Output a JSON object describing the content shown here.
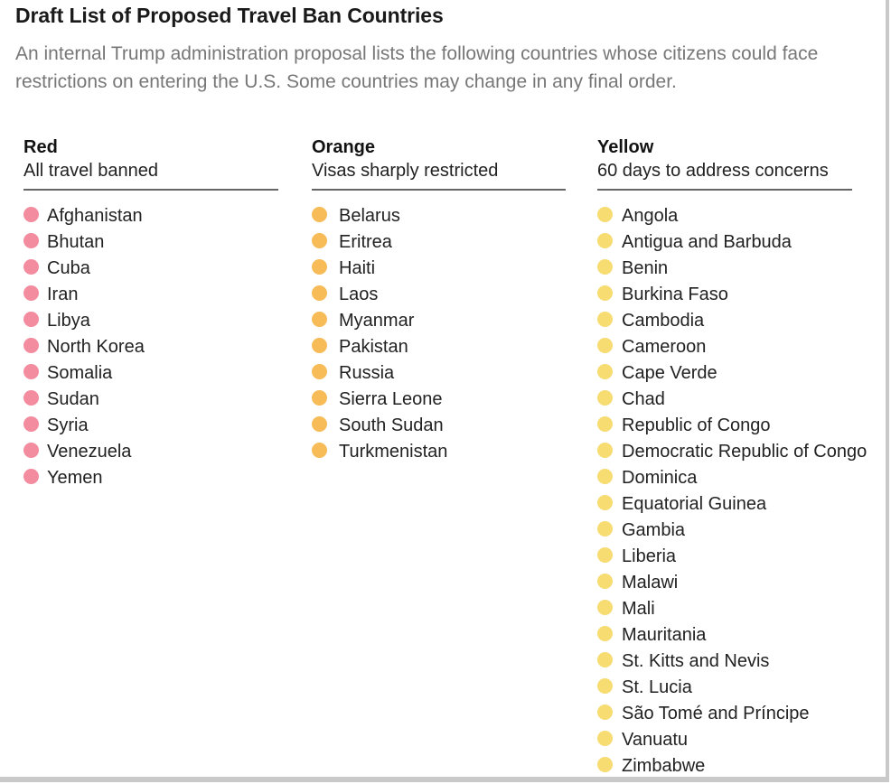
{
  "title": "Draft List of Proposed Travel Ban Countries",
  "subtitle": "An internal Trump administration proposal lists the following countries whose citizens could face restrictions on entering the U.S. Some countries may change in any final order.",
  "columns": [
    {
      "heading": "Red",
      "description": "All travel banned",
      "color": "#f48ca0",
      "countries": [
        "Afghanistan",
        "Bhutan",
        "Cuba",
        "Iran",
        "Libya",
        "North Korea",
        "Somalia",
        "Sudan",
        "Syria",
        "Venezuela",
        "Yemen"
      ]
    },
    {
      "heading": "Orange",
      "description": "Visas sharply restricted",
      "color": "#f7bb57",
      "countries": [
        "Belarus",
        "Eritrea",
        "Haiti",
        "Laos",
        "Myanmar",
        "Pakistan",
        "Russia",
        "Sierra Leone",
        "South Sudan",
        "Turkmenistan"
      ]
    },
    {
      "heading": "Yellow",
      "description": "60 days to address concerns",
      "color": "#f7dc72",
      "countries": [
        "Angola",
        "Antigua and Barbuda",
        "Benin",
        "Burkina Faso",
        "Cambodia",
        "Cameroon",
        "Cape Verde",
        "Chad",
        "Republic of Congo",
        "Democratic Republic of Congo",
        "Dominica",
        "Equatorial Guinea",
        "Gambia",
        "Liberia",
        "Malawi",
        "Mali",
        "Mauritania",
        "St. Kitts and Nevis",
        "St. Lucia",
        "São Tomé and Príncipe",
        "Vanuatu",
        "Zimbabwe"
      ]
    }
  ]
}
